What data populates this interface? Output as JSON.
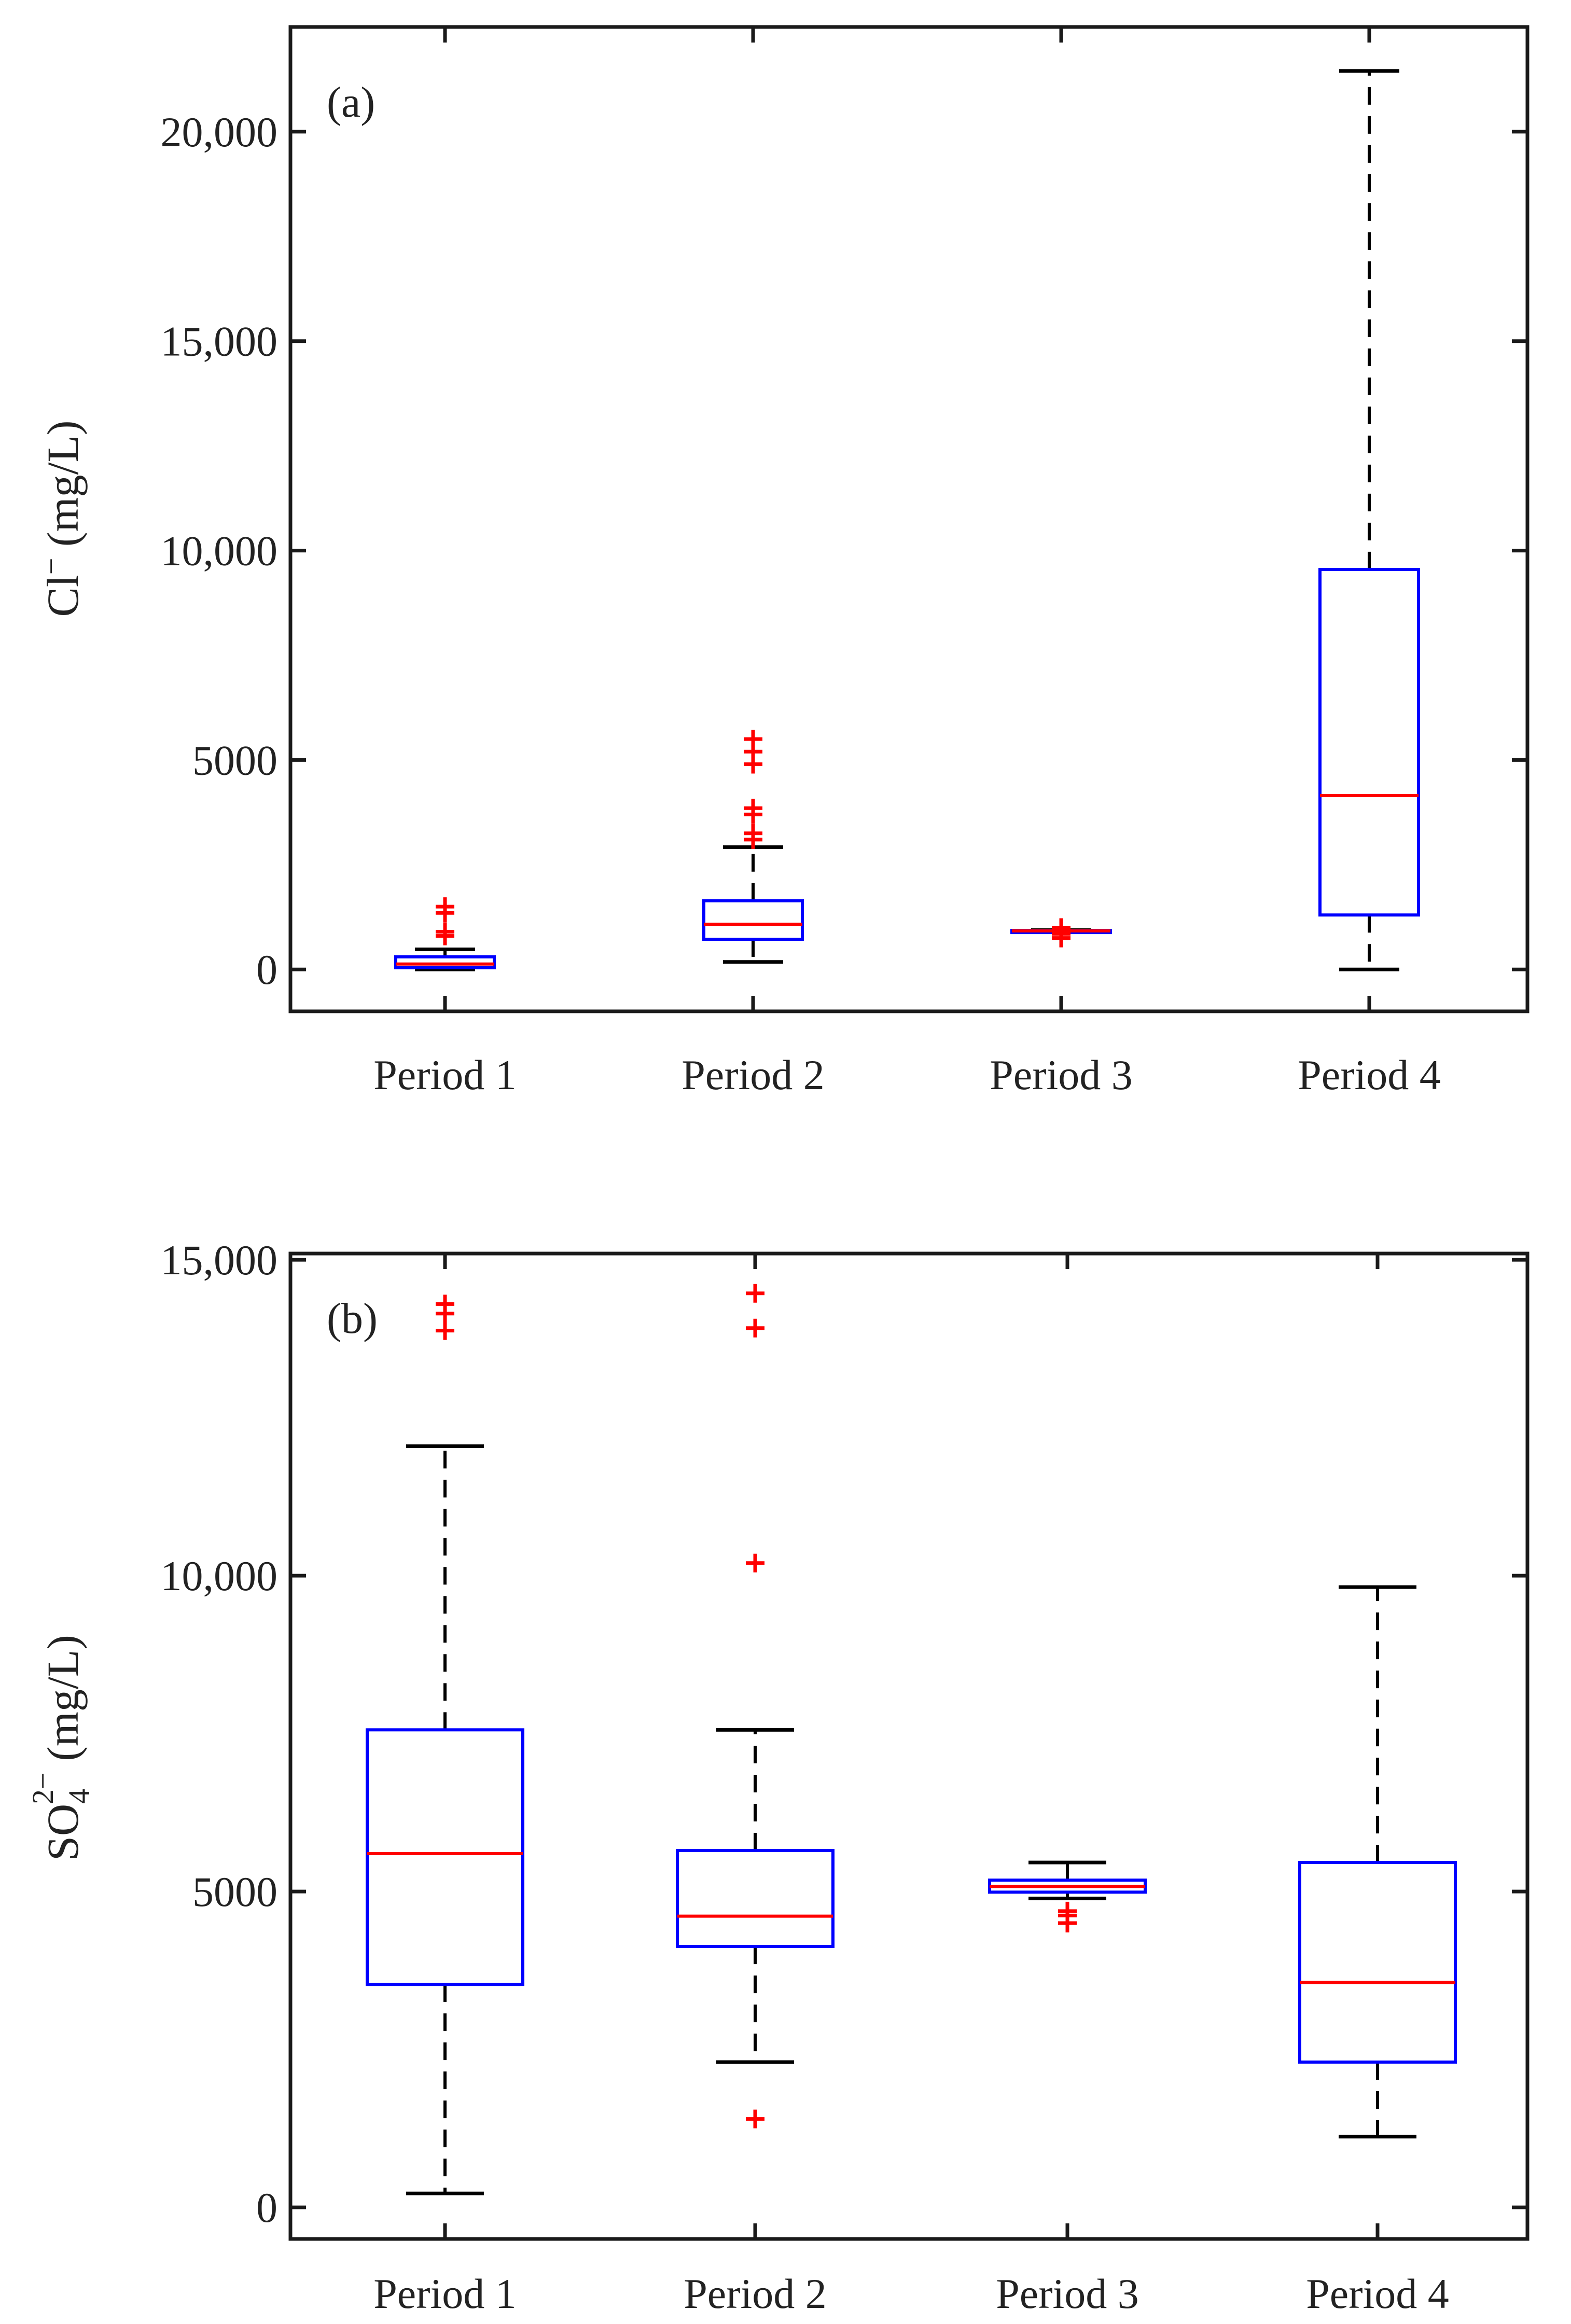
{
  "chart_data": [
    {
      "type": "boxplot",
      "panel_label": "(a)",
      "ylabel": {
        "main": "Cl",
        "sup": "−",
        "unit": " (mg/L)"
      },
      "categories": [
        "Period 1",
        "Period 2",
        "Period 3",
        "Period 4"
      ],
      "ylim": [
        -1000,
        22500
      ],
      "yticks": [
        0,
        5000,
        10000,
        15000,
        20000
      ],
      "ytick_labels": [
        "0",
        "5000",
        "10,000",
        "15,000",
        "20,000"
      ],
      "boxes": [
        {
          "whisker_low": 0,
          "q1": 40,
          "median": 130,
          "q3": 300,
          "whisker_high": 480,
          "outliers": [
            800,
            900,
            1350,
            1500
          ]
        },
        {
          "whisker_low": 180,
          "q1": 720,
          "median": 1080,
          "q3": 1640,
          "whisker_high": 2920,
          "outliers": [
            3100,
            3250,
            3700,
            3850,
            4900,
            5200,
            5500
          ]
        },
        {
          "whisker_low": 900,
          "q1": 910,
          "median": 920,
          "q3": 930,
          "whisker_high": 940,
          "outliers": [
            750,
            850,
            1000
          ]
        },
        {
          "whisker_low": 0,
          "q1": 1300,
          "median": 4150,
          "q3": 9550,
          "whisker_high": 21450,
          "outliers": []
        }
      ],
      "colors": {
        "box": "#0000ff",
        "median": "#ff0000",
        "whisker": "#000000",
        "outlier": "#ff0000"
      }
    },
    {
      "type": "boxplot",
      "panel_label": "(b)",
      "ylabel": {
        "main": "SO",
        "sub": "4",
        "sup": "2−",
        "unit": " (mg/L)"
      },
      "categories": [
        "Period 1",
        "Period 2",
        "Period 3",
        "Period 4"
      ],
      "ylim": [
        -500,
        15100
      ],
      "yticks": [
        0,
        5000,
        10000,
        15000
      ],
      "ytick_labels": [
        "0",
        "5000",
        "10,000",
        "15,000"
      ],
      "boxes": [
        {
          "whisker_low": 220,
          "q1": 3530,
          "median": 5600,
          "q3": 7560,
          "whisker_high": 12050,
          "outliers": [
            13880,
            14150,
            14300
          ]
        },
        {
          "whisker_low": 2300,
          "q1": 4130,
          "median": 4610,
          "q3": 5650,
          "whisker_high": 7560,
          "outliers": [
            1400,
            10200,
            13920,
            14470
          ]
        },
        {
          "whisker_low": 4890,
          "q1": 4990,
          "median": 5080,
          "q3": 5180,
          "whisker_high": 5460,
          "outliers": [
            4500,
            4620,
            4690
          ]
        },
        {
          "whisker_low": 1120,
          "q1": 2300,
          "median": 3560,
          "q3": 5460,
          "whisker_high": 9820,
          "outliers": []
        }
      ],
      "colors": {
        "box": "#0000ff",
        "median": "#ff0000",
        "whisker": "#000000",
        "outlier": "#ff0000"
      }
    }
  ]
}
